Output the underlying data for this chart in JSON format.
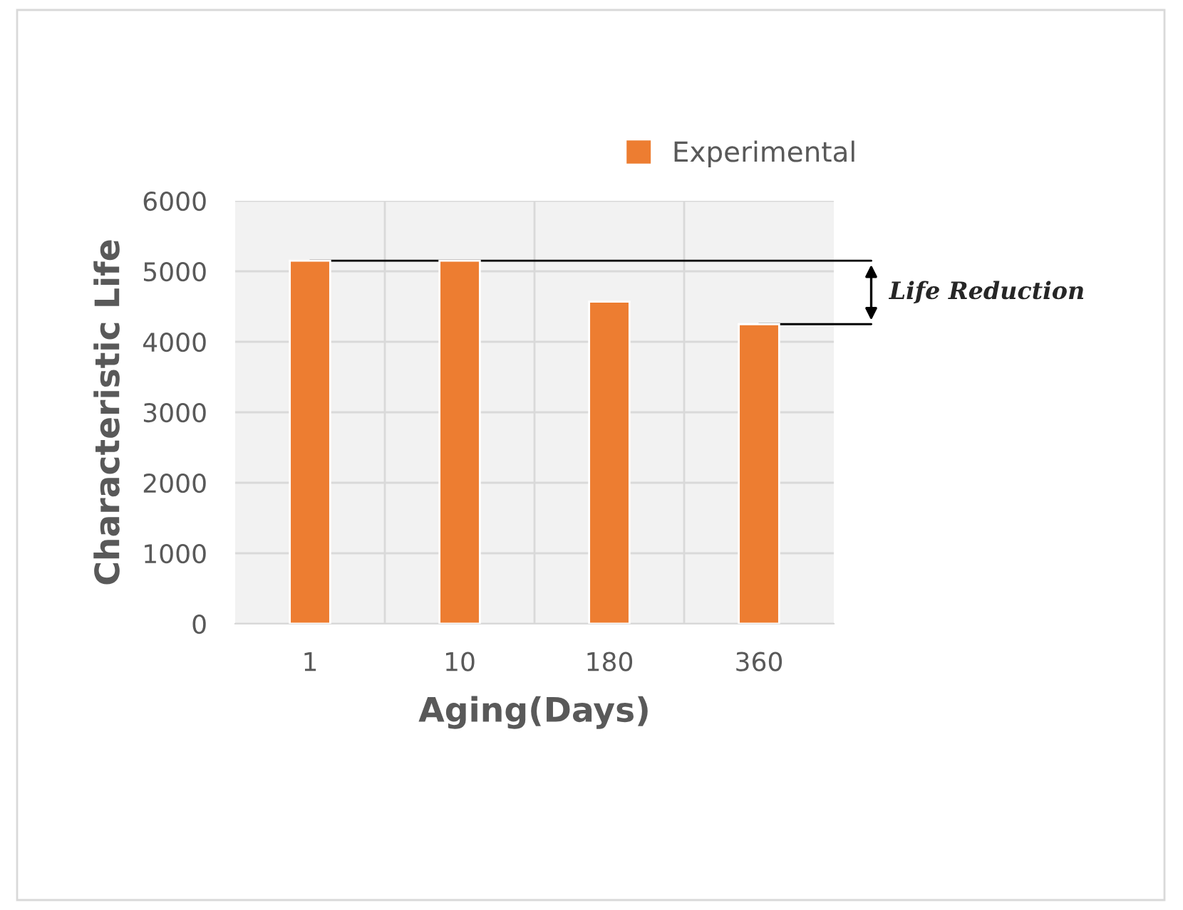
{
  "chart_data": {
    "type": "bar",
    "xlabel": "Aging(Days)",
    "ylabel": "Characteristic Life",
    "categories": [
      "1",
      "10",
      "180",
      "360"
    ],
    "series": [
      {
        "name": "Experimental",
        "color": "#ed7d31",
        "values": [
          5150,
          5150,
          4570,
          4250
        ]
      }
    ],
    "ylim": [
      0,
      6000
    ],
    "yticks": [
      0,
      1000,
      2000,
      3000,
      4000,
      5000,
      6000
    ],
    "grid": true,
    "legend": "top right",
    "ref_lines": [
      {
        "axis": "y",
        "value": 5150,
        "color": "#000000"
      },
      {
        "axis": "y",
        "value": 4250,
        "color": "#000000"
      }
    ],
    "annotations": [
      "Life Reduction"
    ]
  }
}
